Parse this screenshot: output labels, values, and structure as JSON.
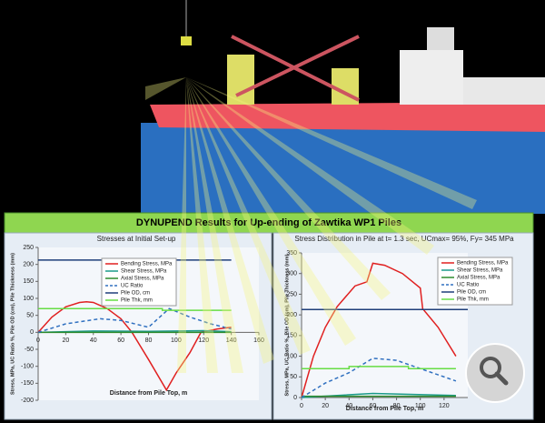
{
  "header": {
    "title": "DYNUPEND Results for Up-ending of Zawtika WP1 Piles"
  },
  "chart_data": [
    {
      "type": "line",
      "title": "Stresses at Initial Set-up",
      "x_label": "Distance from Pile Top, m",
      "y_label": "Stress, MPa, UC Ratio %, Pile OD (cm), Pile Thickness (mm)",
      "xlim": [
        0,
        160
      ],
      "xticks": [
        0,
        20,
        40,
        60,
        80,
        100,
        120,
        140,
        160
      ],
      "ylim": [
        -200,
        250
      ],
      "yticks": [
        -200,
        -150,
        -100,
        -50,
        0,
        50,
        100,
        150,
        200,
        250
      ],
      "legend": "upper center",
      "series": [
        {
          "name": "Bending Stress, MPa",
          "color": "#e02020",
          "x": [
            0,
            10,
            20,
            30,
            35,
            40,
            50,
            60,
            68,
            80,
            93,
            100,
            110,
            118,
            130,
            140
          ],
          "values": [
            0,
            45,
            75,
            88,
            90,
            88,
            70,
            40,
            0,
            -80,
            -170,
            -120,
            -60,
            0,
            10,
            15
          ]
        },
        {
          "name": "Shear Stress, MPa",
          "color": "#1a9a8a",
          "x": [
            0,
            40,
            80,
            120,
            140
          ],
          "values": [
            0,
            4,
            3,
            5,
            2
          ]
        },
        {
          "name": "Axial Stress, MPa",
          "color": "#2e8b2e",
          "x": [
            0,
            140
          ],
          "values": [
            0,
            0
          ]
        },
        {
          "name": "UC Ratio",
          "color": "#3070c0",
          "dash": true,
          "x": [
            0,
            20,
            45,
            60,
            80,
            95,
            110,
            125,
            140
          ],
          "values": [
            0,
            25,
            40,
            35,
            15,
            70,
            45,
            25,
            10
          ]
        },
        {
          "name": "Pile OD, cm",
          "color": "#1f3f7a",
          "x": [
            0,
            140
          ],
          "values": [
            213,
            213
          ]
        },
        {
          "name": "Pile Thk, mm",
          "color": "#66dd44",
          "x": [
            0,
            90,
            90,
            140
          ],
          "values": [
            70,
            70,
            65,
            65
          ]
        }
      ]
    },
    {
      "type": "line",
      "title": "Stress Distribution in Pile at t= 1.3 sec, UCmax= 95%, Fy= 345 MPa",
      "x_label": "Distance from Pile Top, m",
      "y_label": "Stress, MPa, UC Ratio %, Pile OD (cm), Pile Thickness (mm)",
      "xlim": [
        0,
        140
      ],
      "xticks": [
        0,
        20,
        40,
        60,
        80,
        100,
        120
      ],
      "ylim": [
        0,
        350
      ],
      "yticks": [
        0,
        50,
        100,
        150,
        200,
        250,
        300,
        350
      ],
      "legend": "upper right",
      "series": [
        {
          "name": "Bending Stress, MPa",
          "color": "#e02020",
          "x": [
            0,
            10,
            20,
            30,
            45,
            55,
            60,
            70,
            85,
            100,
            102,
            115,
            130
          ],
          "values": [
            0,
            100,
            170,
            220,
            270,
            280,
            325,
            320,
            300,
            265,
            215,
            170,
            100
          ]
        },
        {
          "name": "Shear Stress, MPa",
          "color": "#1a9a8a",
          "x": [
            0,
            60,
            130
          ],
          "values": [
            0,
            10,
            5
          ]
        },
        {
          "name": "Axial Stress, MPa",
          "color": "#2e8b2e",
          "x": [
            0,
            130
          ],
          "values": [
            3,
            3
          ]
        },
        {
          "name": "UC Ratio",
          "color": "#3070c0",
          "dash": true,
          "x": [
            0,
            20,
            40,
            60,
            80,
            100,
            130
          ],
          "values": [
            0,
            35,
            60,
            95,
            90,
            70,
            40
          ]
        },
        {
          "name": "Pile OD, cm",
          "color": "#1f3f7a",
          "x": [
            0,
            140
          ],
          "values": [
            213,
            213
          ]
        },
        {
          "name": "Pile Thk, mm",
          "color": "#66dd44",
          "x": [
            0,
            40,
            40,
            90,
            90,
            130
          ],
          "values": [
            70,
            70,
            75,
            75,
            70,
            70
          ]
        }
      ]
    }
  ]
}
